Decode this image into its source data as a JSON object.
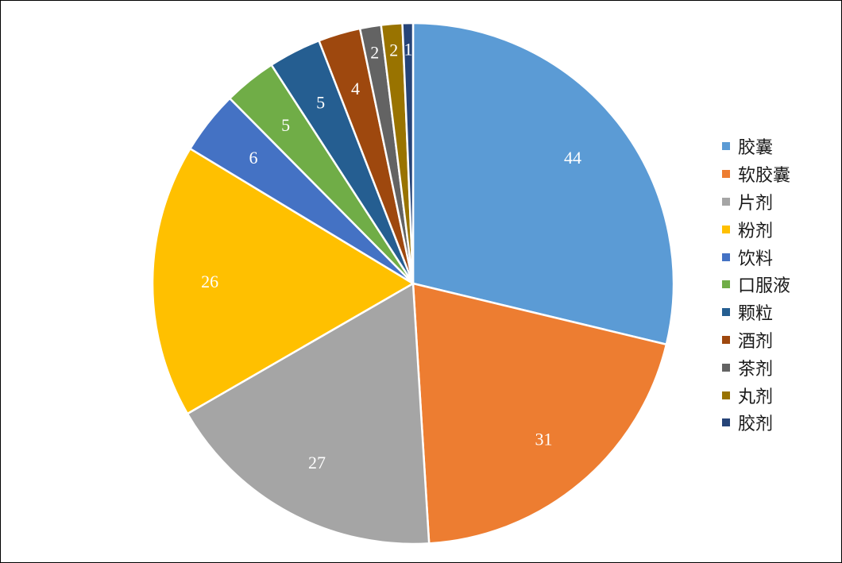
{
  "chart_data": {
    "type": "pie",
    "categories": [
      "胶囊",
      "软胶囊",
      "片剂",
      "粉剂",
      "饮料",
      "口服液",
      "颗粒",
      "酒剂",
      "茶剂",
      "丸剂",
      "胶剂"
    ],
    "values": [
      44,
      31,
      27,
      26,
      6,
      5,
      5,
      4,
      2,
      2,
      1
    ],
    "colors": [
      "#5B9BD5",
      "#ED7D31",
      "#A5A5A5",
      "#FFC000",
      "#4472C4",
      "#70AD47",
      "#255E91",
      "#9E480E",
      "#636363",
      "#997300",
      "#264478"
    ],
    "legend_position": "right",
    "data_labels": true,
    "start_angle_deg": 0,
    "direction": "clockwise"
  }
}
